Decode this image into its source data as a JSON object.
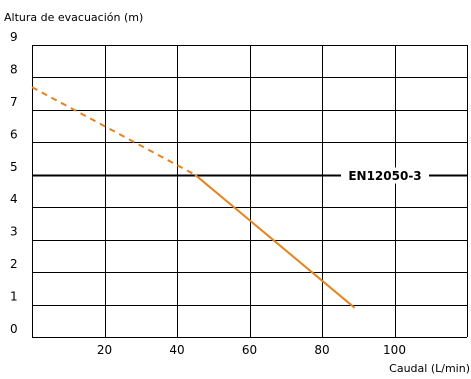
{
  "chart_data": {
    "type": "line",
    "title": "",
    "ylabel": "Altura de evacuación (m)",
    "xlabel": "Caudal (L/min)",
    "xlim": [
      0,
      120
    ],
    "ylim": [
      0,
      9
    ],
    "x_ticks": [
      20,
      40,
      60,
      80,
      100
    ],
    "y_ticks": [
      0,
      1,
      2,
      3,
      4,
      5,
      6,
      7,
      8,
      9
    ],
    "x_tick_labels": [
      "20",
      "40",
      "60",
      "80",
      "100"
    ],
    "y_tick_labels": [
      "0",
      "1",
      "2",
      "3",
      "4",
      "5",
      "6",
      "7",
      "8",
      "9"
    ],
    "grid": true,
    "series": [
      {
        "style": "dashed",
        "color": "#E8821E",
        "points": [
          [
            0,
            7.7
          ],
          [
            45,
            5.0
          ]
        ]
      },
      {
        "style": "solid",
        "color": "#E8821E",
        "points": [
          [
            45,
            5.0
          ],
          [
            89,
            0.9
          ]
        ]
      }
    ],
    "reference_line": {
      "y": 5,
      "label": "EN12050-3"
    },
    "colors": {
      "curve": "#E8821E",
      "grid": "#000000",
      "reference": "#000000"
    }
  }
}
